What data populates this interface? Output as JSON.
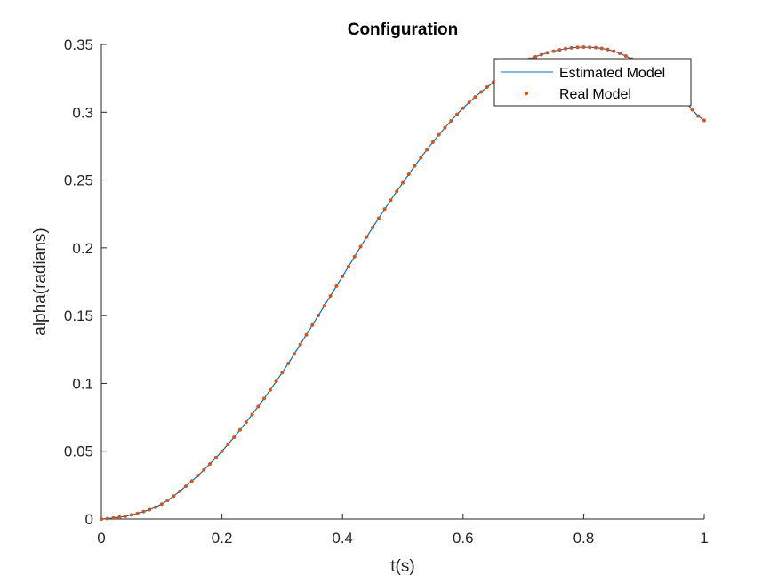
{
  "chart_data": {
    "type": "line",
    "title": "Configuration",
    "xlabel": "t(s)",
    "ylabel": "alpha(radians)",
    "xlim": [
      0,
      1
    ],
    "ylim": [
      0,
      0.35
    ],
    "x_ticks": [
      0,
      0.2,
      0.4,
      0.6,
      0.8,
      1
    ],
    "x_tick_labels": [
      "0",
      "0.2",
      "0.4",
      "0.6",
      "0.8",
      "1"
    ],
    "y_ticks": [
      0,
      0.05,
      0.1,
      0.15,
      0.2,
      0.25,
      0.3,
      0.35
    ],
    "y_tick_labels": [
      "0",
      "0.05",
      "0.1",
      "0.15",
      "0.2",
      "0.25",
      "0.3",
      "0.35"
    ],
    "grid": false,
    "legend_position": "top-right",
    "x": [
      0,
      0.05,
      0.1,
      0.15,
      0.2,
      0.25,
      0.3,
      0.35,
      0.4,
      0.45,
      0.5,
      0.55,
      0.6,
      0.65,
      0.7,
      0.75,
      0.8,
      0.85,
      0.9,
      0.95,
      1.0
    ],
    "series": [
      {
        "name": "Estimated Model",
        "style": "line",
        "color": "#0072BD",
        "values": [
          0,
          0.003,
          0.011,
          0.028,
          0.05,
          0.077,
          0.108,
          0.143,
          0.179,
          0.215,
          0.248,
          0.278,
          0.303,
          0.322,
          0.337,
          0.345,
          0.348,
          0.345,
          0.334,
          0.317,
          0.294
        ]
      },
      {
        "name": "Real Model",
        "style": "markers",
        "color": "#D95319",
        "values": [
          0,
          0.003,
          0.011,
          0.028,
          0.05,
          0.077,
          0.108,
          0.143,
          0.179,
          0.215,
          0.248,
          0.278,
          0.303,
          0.322,
          0.337,
          0.345,
          0.348,
          0.345,
          0.334,
          0.317,
          0.294
        ]
      }
    ]
  }
}
